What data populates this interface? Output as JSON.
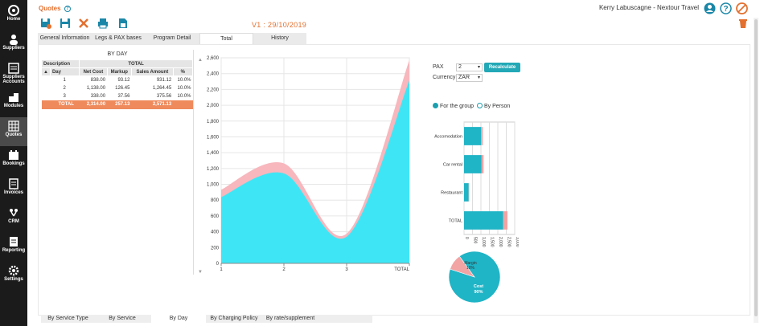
{
  "app": {
    "title": "Quotes",
    "user": "Kerry Labuscagne - Nextour Travel",
    "version": "V1 : 29/10/2019"
  },
  "sidebar": {
    "items": [
      {
        "label": "Home",
        "icon": "home-icon"
      },
      {
        "label": "Suppliers",
        "icon": "suppliers-icon"
      },
      {
        "label": "Suppliers Accounts",
        "icon": "supplier-accounts-icon"
      },
      {
        "label": "Modules",
        "icon": "modules-icon"
      },
      {
        "label": "Quotes",
        "icon": "quotes-icon"
      },
      {
        "label": "Bookings",
        "icon": "bookings-icon"
      },
      {
        "label": "Invoices",
        "icon": "invoices-icon"
      },
      {
        "label": "CRM",
        "icon": "crm-icon"
      },
      {
        "label": "Reporting",
        "icon": "reporting-icon"
      },
      {
        "label": "Settings",
        "icon": "settings-icon"
      }
    ]
  },
  "tabs": [
    "General Information",
    "Legs & PAX bases",
    "Program Detail",
    "Total",
    "History"
  ],
  "bottom_tabs": [
    "By Service Type",
    "By Service",
    "By Day",
    "By Charging Policy",
    "By rate/supplement"
  ],
  "day_table": {
    "caption": "BY DAY",
    "group_headers": [
      "Description",
      "TOTAL"
    ],
    "headers": [
      "Day",
      "Net Cost",
      "Markup",
      "Sales Amount",
      "%"
    ],
    "rows": [
      [
        "1",
        "838.00",
        "93.12",
        "931.12",
        "10.0%"
      ],
      [
        "2",
        "1,138.00",
        "126.45",
        "1,264.45",
        "10.0%"
      ],
      [
        "3",
        "338.00",
        "37.56",
        "375.56",
        "10.0%"
      ]
    ],
    "total": [
      "TOTAL",
      "2,314.00",
      "257.13",
      "2,571.13",
      ""
    ]
  },
  "controls": {
    "pax_label": "PAX",
    "pax_value": "2",
    "currency_label": "Currency",
    "currency_value": "ZAR",
    "recalc_label": "Recalculate",
    "radio_group": "For the group",
    "radio_person": "By Person"
  },
  "colors": {
    "accent_orange": "#e3702f",
    "cost": "#1fb4c6",
    "margin": "#f2a3a3",
    "area_cost": "#3ee6f5",
    "area_margin": "#f7b7bd"
  },
  "chart_data": [
    {
      "type": "area",
      "x": [
        "1",
        "2",
        "3",
        "TOTAL"
      ],
      "series": [
        {
          "values": [
            838,
            1138,
            338,
            2314
          ]
        },
        {
          "values": [
            931.12,
            1264.45,
            375.56,
            2571.13
          ]
        }
      ],
      "yticks": [
        0,
        200,
        400,
        600,
        800,
        1000,
        1200,
        1400,
        1600,
        1800,
        2000,
        2200,
        2400,
        2600
      ],
      "ylim": [
        0,
        2600
      ]
    },
    {
      "type": "bar",
      "orientation": "horizontal",
      "categories": [
        "Accomodation",
        "Car rental",
        "Restaurant",
        "TOTAL"
      ],
      "series": [
        {
          "values": [
            1000,
            1040,
            274,
            2314
          ]
        },
        {
          "values": [
            110,
            115,
            30,
            257
          ]
        }
      ],
      "xticks": [
        "0",
        "500",
        "1,000",
        "1,500",
        "2,000",
        "2,500",
        "3,000"
      ],
      "xlim": [
        0,
        3000
      ]
    },
    {
      "type": "pie",
      "slices": [
        {
          "label": "Cost",
          "pct": "90%",
          "value": 90
        },
        {
          "label": "Margin",
          "pct": "10%",
          "value": 10
        }
      ]
    }
  ]
}
